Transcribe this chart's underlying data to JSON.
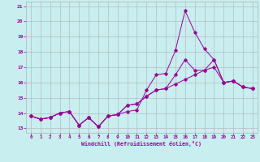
{
  "title": "",
  "xlabel": "Windchill (Refroidissement éolien,°C)",
  "ylabel": "",
  "background_color": "#c8eef0",
  "grid_color": "#b0b0b0",
  "line_color": "#990099",
  "xlim": [
    -0.5,
    23.5
  ],
  "ylim": [
    12.7,
    21.3
  ],
  "yticks": [
    13,
    14,
    15,
    16,
    17,
    18,
    19,
    20,
    21
  ],
  "xticks": [
    0,
    1,
    2,
    3,
    4,
    5,
    6,
    7,
    8,
    9,
    10,
    11,
    12,
    13,
    14,
    15,
    16,
    17,
    18,
    19,
    20,
    21,
    22,
    23
  ],
  "series": [
    [
      13.8,
      13.6,
      13.7,
      14.0,
      14.1,
      13.2,
      13.7,
      13.1,
      13.8,
      13.9,
      14.1,
      14.2,
      15.5,
      16.5,
      16.6,
      18.1,
      20.7,
      19.3,
      18.2,
      17.5,
      16.0,
      16.1,
      15.7,
      15.6
    ],
    [
      13.8,
      13.6,
      13.7,
      14.0,
      14.1,
      13.2,
      13.7,
      13.1,
      13.8,
      13.9,
      14.5,
      14.6,
      15.1,
      15.5,
      15.6,
      16.5,
      17.5,
      16.8,
      16.8,
      17.5,
      16.0,
      16.1,
      15.7,
      15.6
    ],
    [
      13.8,
      13.6,
      13.7,
      14.0,
      14.1,
      13.2,
      13.7,
      13.1,
      13.8,
      13.9,
      14.5,
      14.6,
      15.1,
      15.5,
      15.6,
      15.9,
      16.2,
      16.5,
      16.8,
      17.0,
      16.0,
      16.1,
      15.7,
      15.6
    ]
  ]
}
